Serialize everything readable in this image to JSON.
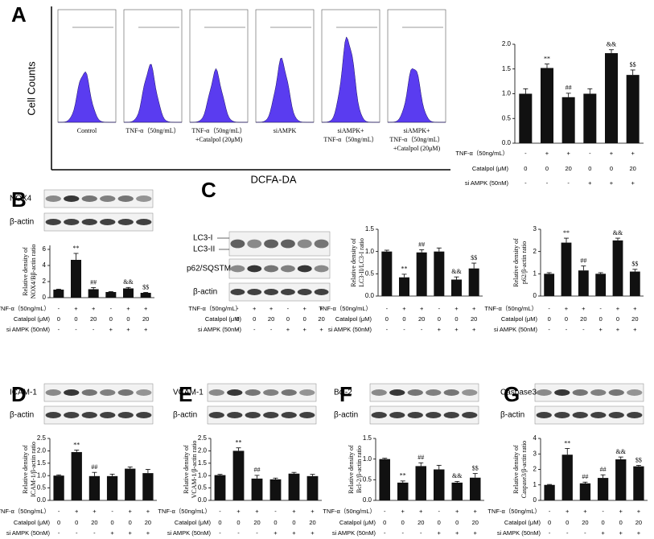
{
  "panel_labels": [
    "A",
    "B",
    "C",
    "D",
    "E",
    "F",
    "G"
  ],
  "flow": {
    "y_label": "Cell Counts",
    "x_label": "DCFA-DA",
    "samples": [
      [
        "Control"
      ],
      [
        "TNF-α（50ng/mL）"
      ],
      [
        "TNF-α（50ng/mL）",
        "+Catalpol (20μM)"
      ],
      [
        "siAMPK"
      ],
      [
        "siAMPK+",
        "TNF-α（50ng/mL）"
      ],
      [
        "siAMPK+",
        "TNF-α（50ng/mL）",
        "+Catalpol (20μM)"
      ]
    ]
  },
  "blots": {
    "B": [
      "NOX4",
      "β-actin"
    ],
    "C": [
      "LC3-I",
      "LC3-II",
      "p62/SQSTM",
      "β-actin"
    ],
    "D": [
      "ICAM-1",
      "β-actin"
    ],
    "E": [
      "VCAM-1",
      "β-actin"
    ],
    "F": [
      "Bcl-2",
      "β-actin"
    ],
    "G": [
      "Caspase3",
      "β-actin"
    ]
  },
  "conditions": [
    {
      "label": "TNF-α（50ng/mL）",
      "values": [
        "-",
        "+",
        "+",
        "-",
        "+",
        "+"
      ]
    },
    {
      "label": "Catalpol (μM)",
      "values": [
        0,
        0,
        20,
        0,
        0,
        20
      ]
    },
    {
      "label": "si AMPK (50nM)",
      "values": [
        "-",
        "-",
        "-",
        "+",
        "+",
        "+"
      ]
    }
  ],
  "chart_data": [
    {
      "type": "bar",
      "color": "#111111",
      "ylim": [
        0,
        2
      ],
      "yticks": [
        {
          "value": 0,
          "label": "0.0"
        },
        0.5,
        {
          "value": 1,
          "label": "1.0"
        },
        1.5,
        {
          "value": 2,
          "label": "2.0"
        }
      ],
      "values": [
        1.0,
        1.52,
        0.93,
        1.0,
        1.82,
        1.38
      ],
      "errors": [
        0.1,
        0.08,
        0.08,
        0.1,
        0.07,
        0.1
      ],
      "annotations": [
        null,
        "**",
        "##",
        null,
        "&&",
        "$$"
      ]
    },
    {
      "type": "bar",
      "color": "#111111",
      "y_label": [
        "Relative density of",
        "NOX4/Bβ-actin ratio"
      ],
      "ylim": [
        0,
        6.5
      ],
      "yticks": [
        0,
        2,
        4,
        6
      ],
      "values": [
        1.0,
        4.7,
        1.05,
        0.7,
        1.15,
        0.6
      ],
      "errors": [
        0.05,
        0.8,
        0.2,
        0.05,
        0.12,
        0.05
      ],
      "annotations": [
        null,
        "**",
        "##",
        null,
        "&&",
        "$$"
      ]
    },
    {
      "type": "bar",
      "color": "#111111",
      "y_label": [
        "Relative density of",
        "LC3-II/LC3-I ratio"
      ],
      "ylim": [
        0,
        1.5
      ],
      "yticks": [
        {
          "value": 0,
          "label": "0.0"
        },
        0.5,
        {
          "value": 1,
          "label": "1.0"
        },
        1.5
      ],
      "values": [
        1.0,
        0.42,
        0.98,
        1.0,
        0.37,
        0.62
      ],
      "errors": [
        0.03,
        0.07,
        0.06,
        0.08,
        0.06,
        0.12
      ],
      "annotations": [
        null,
        "**",
        "##",
        null,
        "&&",
        "$$"
      ]
    },
    {
      "type": "bar",
      "color": "#111111",
      "y_label": [
        "Relative density of",
        "p62/β-actin ratio"
      ],
      "ylim": [
        0,
        3
      ],
      "yticks": [
        0,
        1,
        2,
        3
      ],
      "values": [
        1.0,
        2.4,
        1.15,
        1.0,
        2.5,
        1.1
      ],
      "errors": [
        0.05,
        0.2,
        0.2,
        0.05,
        0.1,
        0.1
      ],
      "annotations": [
        null,
        "**",
        "##",
        null,
        "&&",
        "$$"
      ]
    },
    {
      "type": "bar",
      "color": "#111111",
      "y_label": [
        "Relative density of",
        "ICAM-1/β-actin ratio"
      ],
      "ylim": [
        0,
        2.5
      ],
      "yticks": [
        {
          "value": 0,
          "label": "0.0"
        },
        0.5,
        {
          "value": 1,
          "label": "1.0"
        },
        1.5,
        {
          "value": 2,
          "label": "2.0"
        },
        2.5
      ],
      "values": [
        1.0,
        1.95,
        0.98,
        0.98,
        1.28,
        1.1
      ],
      "errors": [
        0.03,
        0.08,
        0.15,
        0.08,
        0.07,
        0.15
      ],
      "annotations": [
        null,
        "**",
        "##",
        null,
        null,
        null
      ]
    },
    {
      "type": "bar",
      "color": "#111111",
      "y_label": [
        "Relative density of",
        "VCAM-1/β-actin ratio"
      ],
      "ylim": [
        0,
        2.5
      ],
      "yticks": [
        {
          "value": 0,
          "label": "0.0"
        },
        0.5,
        {
          "value": 1,
          "label": "1.0"
        },
        1.5,
        {
          "value": 2,
          "label": "2.0"
        },
        2.5
      ],
      "values": [
        1.02,
        2.0,
        0.88,
        0.85,
        1.08,
        0.98
      ],
      "errors": [
        0.03,
        0.12,
        0.13,
        0.05,
        0.05,
        0.07
      ],
      "annotations": [
        null,
        "**",
        "##",
        null,
        null,
        null
      ]
    },
    {
      "type": "bar",
      "color": "#111111",
      "y_label": [
        "Relative density of",
        "Bcl-2/β-actin ratio"
      ],
      "ylim": [
        0,
        1.5
      ],
      "yticks": [
        {
          "value": 0,
          "label": "0.0"
        },
        0.5,
        {
          "value": 1,
          "label": "1.0"
        },
        1.5
      ],
      "values": [
        1.0,
        0.43,
        0.83,
        0.75,
        0.43,
        0.55
      ],
      "errors": [
        0.02,
        0.04,
        0.08,
        0.1,
        0.03,
        0.1
      ],
      "annotations": [
        null,
        "**",
        "##",
        null,
        "&&",
        "$$"
      ]
    },
    {
      "type": "bar",
      "color": "#111111",
      "y_label": [
        "Relative density of",
        "Caspase3/β-actin ratio"
      ],
      "ylim": [
        0,
        4
      ],
      "yticks": [
        0,
        1,
        2,
        3,
        4
      ],
      "values": [
        1.0,
        2.95,
        1.1,
        1.45,
        2.65,
        2.2
      ],
      "errors": [
        0.03,
        0.4,
        0.08,
        0.2,
        0.15,
        0.06
      ],
      "annotations": [
        null,
        "**",
        "##",
        "##",
        "&&",
        "$$"
      ]
    }
  ]
}
